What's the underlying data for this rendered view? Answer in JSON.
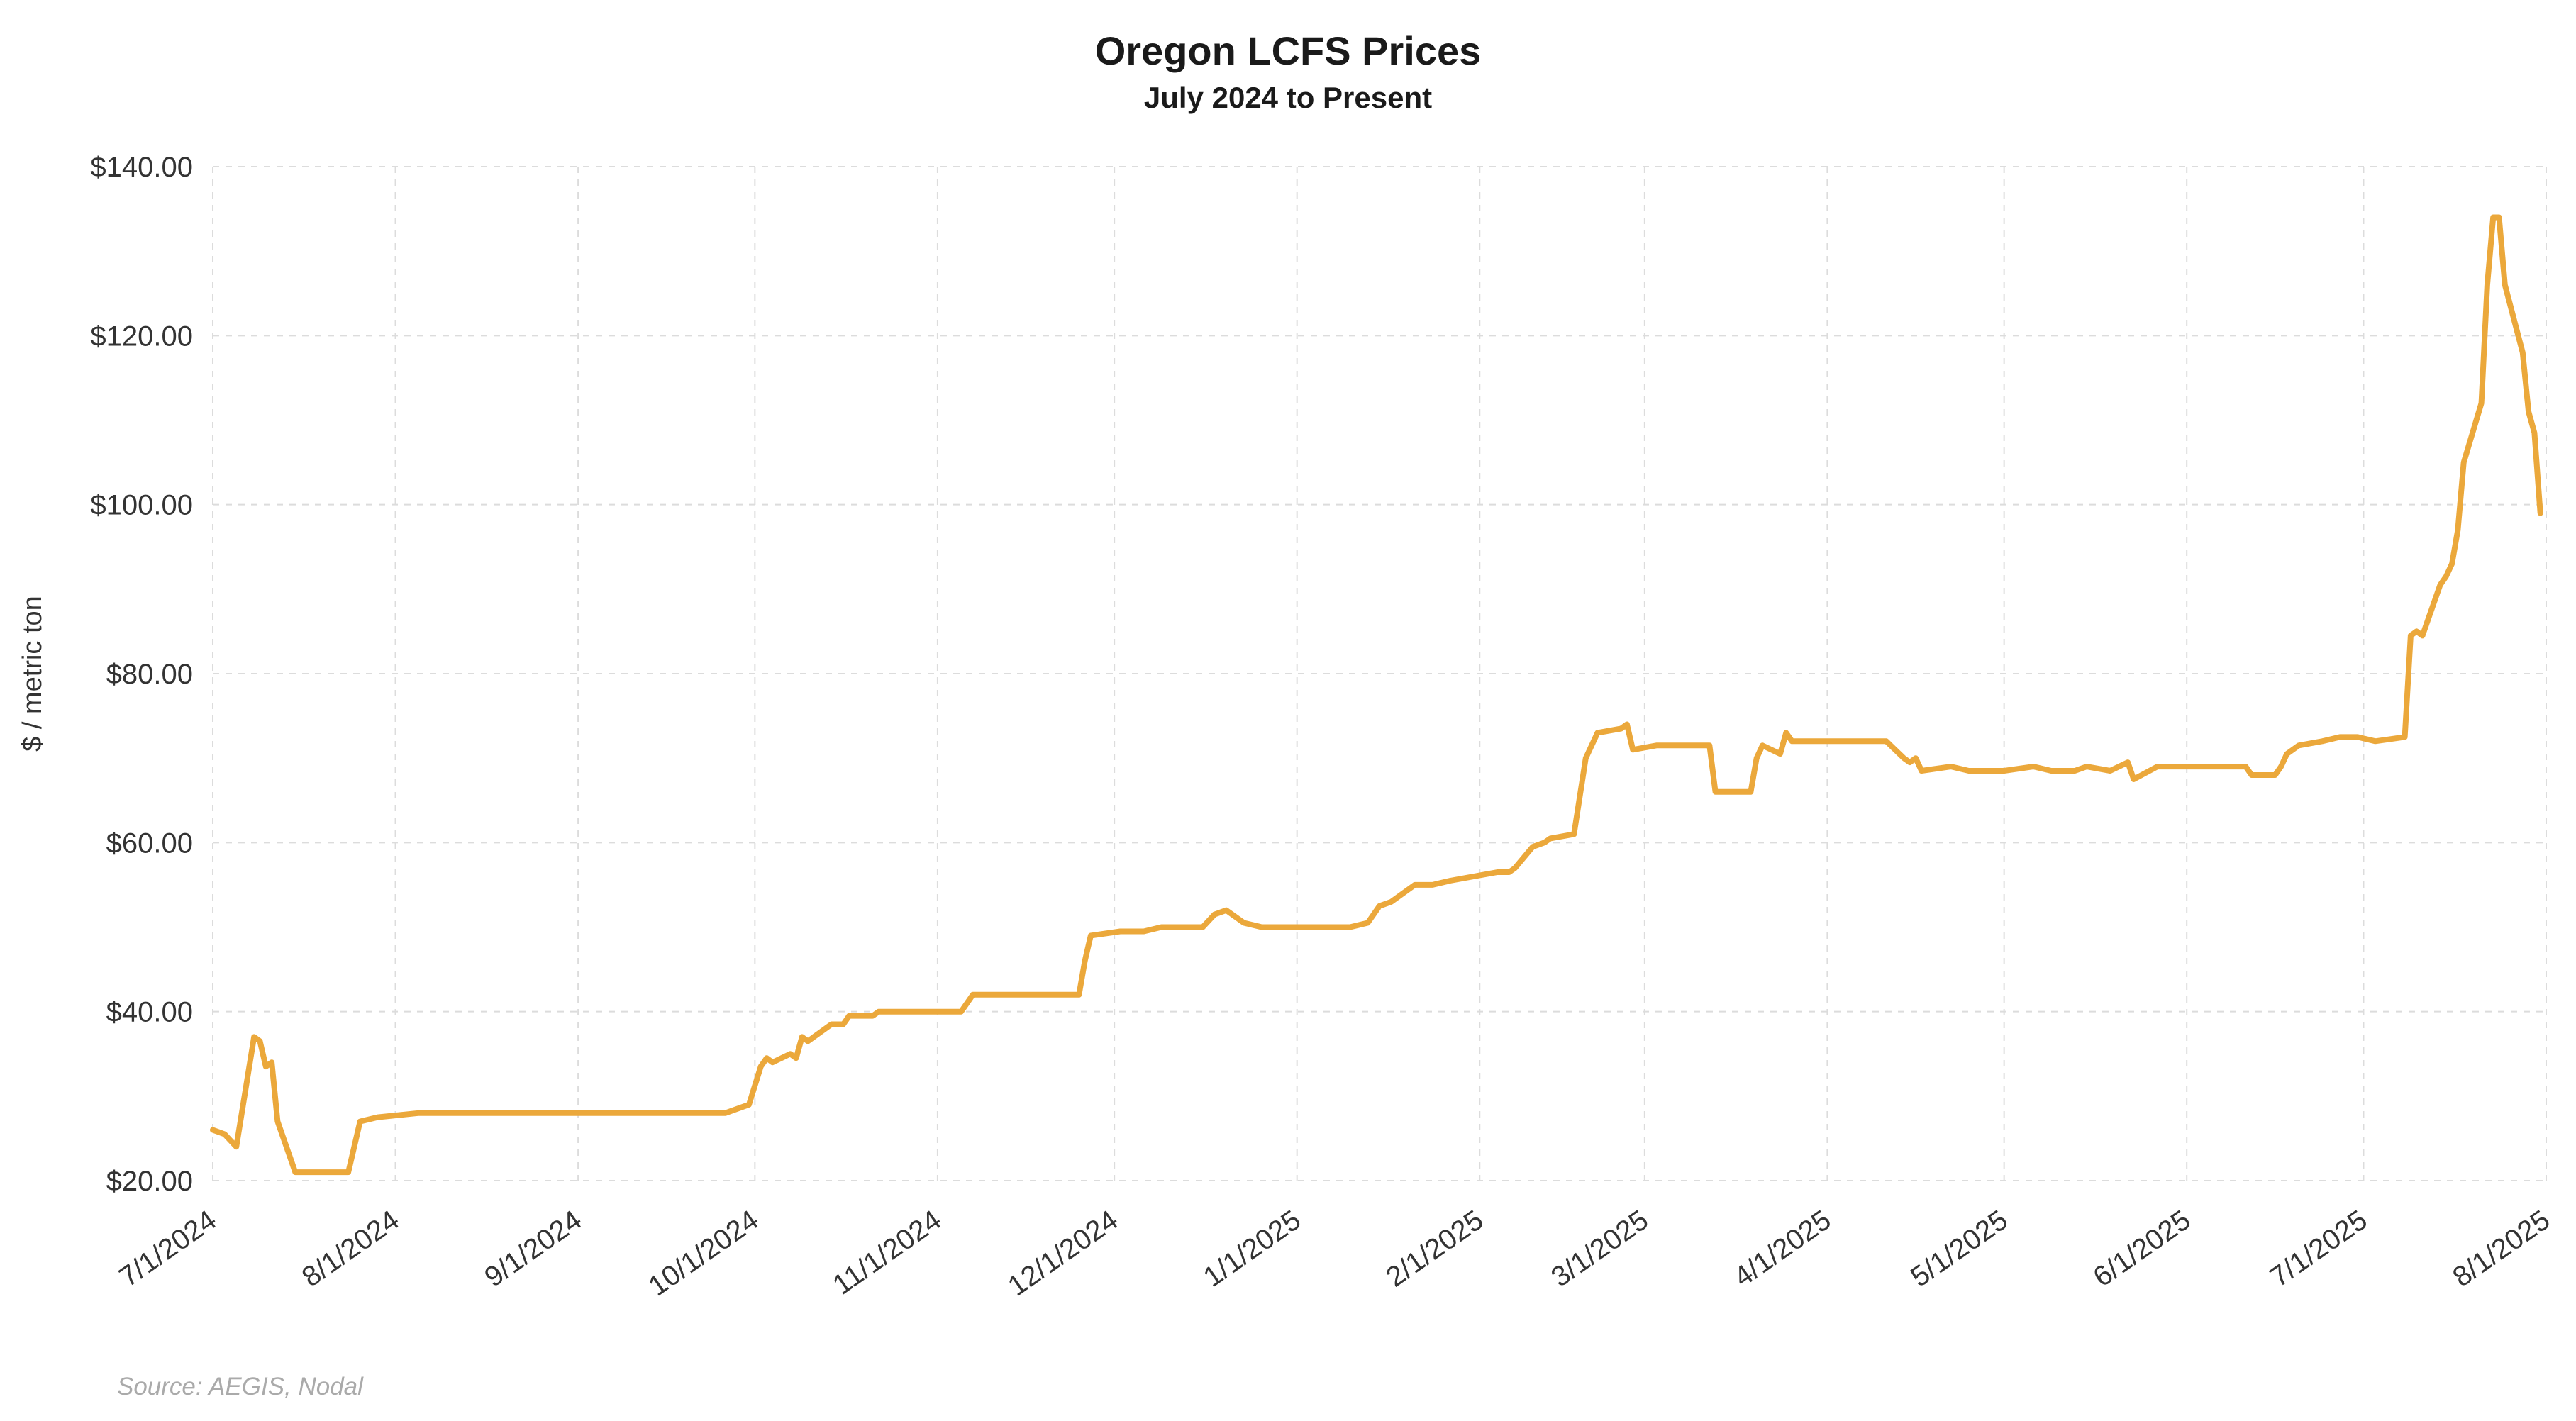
{
  "header": {
    "title": "Oregon LCFS Prices",
    "subtitle": "July 2024 to Present"
  },
  "footer": {
    "source": "Source: AEGIS, Nodal"
  },
  "chart_data": {
    "type": "line",
    "title": "Oregon LCFS Prices",
    "subtitle": "July 2024 to Present",
    "xlabel": "",
    "ylabel": "$ / metric ton",
    "ylim": [
      20,
      140
    ],
    "ytick_step": 20,
    "ytick_prefix": "$",
    "grid": "dashed",
    "legend_position": "none",
    "line_color": "#EBA83B",
    "x_range": [
      "2024-07-01",
      "2025-08-01"
    ],
    "x_ticks": [
      {
        "date": "2024-07-01",
        "label": "7/1/2024"
      },
      {
        "date": "2024-08-01",
        "label": "8/1/2024"
      },
      {
        "date": "2024-09-01",
        "label": "9/1/2024"
      },
      {
        "date": "2024-10-01",
        "label": "10/1/2024"
      },
      {
        "date": "2024-11-01",
        "label": "11/1/2024"
      },
      {
        "date": "2024-12-01",
        "label": "12/1/2024"
      },
      {
        "date": "2025-01-01",
        "label": "1/1/2025"
      },
      {
        "date": "2025-02-01",
        "label": "2/1/2025"
      },
      {
        "date": "2025-03-01",
        "label": "3/1/2025"
      },
      {
        "date": "2025-04-01",
        "label": "4/1/2025"
      },
      {
        "date": "2025-05-01",
        "label": "5/1/2025"
      },
      {
        "date": "2025-06-01",
        "label": "6/1/2025"
      },
      {
        "date": "2025-07-01",
        "label": "7/1/2025"
      },
      {
        "date": "2025-08-01",
        "label": "8/1/2025"
      }
    ],
    "series": [
      {
        "name": "Oregon LCFS Price",
        "points": [
          [
            "2024-07-01",
            26.0
          ],
          [
            "2024-07-03",
            25.5
          ],
          [
            "2024-07-05",
            24.0
          ],
          [
            "2024-07-08",
            37.0
          ],
          [
            "2024-07-09",
            36.5
          ],
          [
            "2024-07-10",
            33.5
          ],
          [
            "2024-07-11",
            34.0
          ],
          [
            "2024-07-12",
            27.0
          ],
          [
            "2024-07-15",
            21.0
          ],
          [
            "2024-07-24",
            21.0
          ],
          [
            "2024-07-26",
            27.0
          ],
          [
            "2024-07-29",
            27.5
          ],
          [
            "2024-08-05",
            28.0
          ],
          [
            "2024-09-26",
            28.0
          ],
          [
            "2024-09-30",
            29.0
          ],
          [
            "2024-10-02",
            33.5
          ],
          [
            "2024-10-03",
            34.5
          ],
          [
            "2024-10-04",
            34.0
          ],
          [
            "2024-10-07",
            35.0
          ],
          [
            "2024-10-08",
            34.5
          ],
          [
            "2024-10-09",
            37.0
          ],
          [
            "2024-10-10",
            36.5
          ],
          [
            "2024-10-14",
            38.5
          ],
          [
            "2024-10-16",
            38.5
          ],
          [
            "2024-10-17",
            39.5
          ],
          [
            "2024-10-21",
            39.5
          ],
          [
            "2024-10-22",
            40.0
          ],
          [
            "2024-11-05",
            40.0
          ],
          [
            "2024-11-07",
            42.0
          ],
          [
            "2024-11-25",
            42.0
          ],
          [
            "2024-11-26",
            46.0
          ],
          [
            "2024-11-27",
            49.0
          ],
          [
            "2024-12-02",
            49.5
          ],
          [
            "2024-12-06",
            49.5
          ],
          [
            "2024-12-09",
            50.0
          ],
          [
            "2024-12-16",
            50.0
          ],
          [
            "2024-12-18",
            51.5
          ],
          [
            "2024-12-20",
            52.0
          ],
          [
            "2024-12-23",
            50.5
          ],
          [
            "2024-12-26",
            50.0
          ],
          [
            "2025-01-10",
            50.0
          ],
          [
            "2025-01-13",
            50.5
          ],
          [
            "2025-01-15",
            52.5
          ],
          [
            "2025-01-17",
            53.0
          ],
          [
            "2025-01-21",
            55.0
          ],
          [
            "2025-01-24",
            55.0
          ],
          [
            "2025-01-27",
            55.5
          ],
          [
            "2025-01-31",
            56.0
          ],
          [
            "2025-02-04",
            56.5
          ],
          [
            "2025-02-06",
            56.5
          ],
          [
            "2025-02-07",
            57.0
          ],
          [
            "2025-02-10",
            59.5
          ],
          [
            "2025-02-12",
            60.0
          ],
          [
            "2025-02-13",
            60.5
          ],
          [
            "2025-02-17",
            61.0
          ],
          [
            "2025-02-19",
            70.0
          ],
          [
            "2025-02-21",
            73.0
          ],
          [
            "2025-02-25",
            73.5
          ],
          [
            "2025-02-26",
            74.0
          ],
          [
            "2025-02-27",
            71.0
          ],
          [
            "2025-03-03",
            71.5
          ],
          [
            "2025-03-12",
            71.5
          ],
          [
            "2025-03-13",
            66.0
          ],
          [
            "2025-03-19",
            66.0
          ],
          [
            "2025-03-20",
            70.0
          ],
          [
            "2025-03-21",
            71.5
          ],
          [
            "2025-03-24",
            70.5
          ],
          [
            "2025-03-25",
            73.0
          ],
          [
            "2025-03-26",
            72.0
          ],
          [
            "2025-03-28",
            72.0
          ],
          [
            "2025-04-11",
            72.0
          ],
          [
            "2025-04-14",
            70.0
          ],
          [
            "2025-04-15",
            69.5
          ],
          [
            "2025-04-16",
            70.0
          ],
          [
            "2025-04-17",
            68.5
          ],
          [
            "2025-04-22",
            69.0
          ],
          [
            "2025-04-25",
            68.5
          ],
          [
            "2025-05-01",
            68.5
          ],
          [
            "2025-05-06",
            69.0
          ],
          [
            "2025-05-09",
            68.5
          ],
          [
            "2025-05-13",
            68.5
          ],
          [
            "2025-05-15",
            69.0
          ],
          [
            "2025-05-19",
            68.5
          ],
          [
            "2025-05-22",
            69.5
          ],
          [
            "2025-05-23",
            67.5
          ],
          [
            "2025-05-27",
            69.0
          ],
          [
            "2025-06-06",
            69.0
          ],
          [
            "2025-06-11",
            69.0
          ],
          [
            "2025-06-12",
            68.0
          ],
          [
            "2025-06-16",
            68.0
          ],
          [
            "2025-06-17",
            69.0
          ],
          [
            "2025-06-18",
            70.5
          ],
          [
            "2025-06-20",
            71.5
          ],
          [
            "2025-06-24",
            72.0
          ],
          [
            "2025-06-27",
            72.5
          ],
          [
            "2025-06-30",
            72.5
          ],
          [
            "2025-07-03",
            72.0
          ],
          [
            "2025-07-08",
            72.5
          ],
          [
            "2025-07-09",
            84.5
          ],
          [
            "2025-07-10",
            85.0
          ],
          [
            "2025-07-11",
            84.5
          ],
          [
            "2025-07-14",
            90.5
          ],
          [
            "2025-07-15",
            91.5
          ],
          [
            "2025-07-16",
            93.0
          ],
          [
            "2025-07-17",
            97.0
          ],
          [
            "2025-07-18",
            105.0
          ],
          [
            "2025-07-21",
            112.0
          ],
          [
            "2025-07-22",
            126.0
          ],
          [
            "2025-07-23",
            134.0
          ],
          [
            "2025-07-24",
            134.0
          ],
          [
            "2025-07-25",
            126.0
          ],
          [
            "2025-07-28",
            118.0
          ],
          [
            "2025-07-29",
            111.0
          ],
          [
            "2025-07-30",
            108.5
          ],
          [
            "2025-07-31",
            99.0
          ]
        ]
      }
    ]
  }
}
